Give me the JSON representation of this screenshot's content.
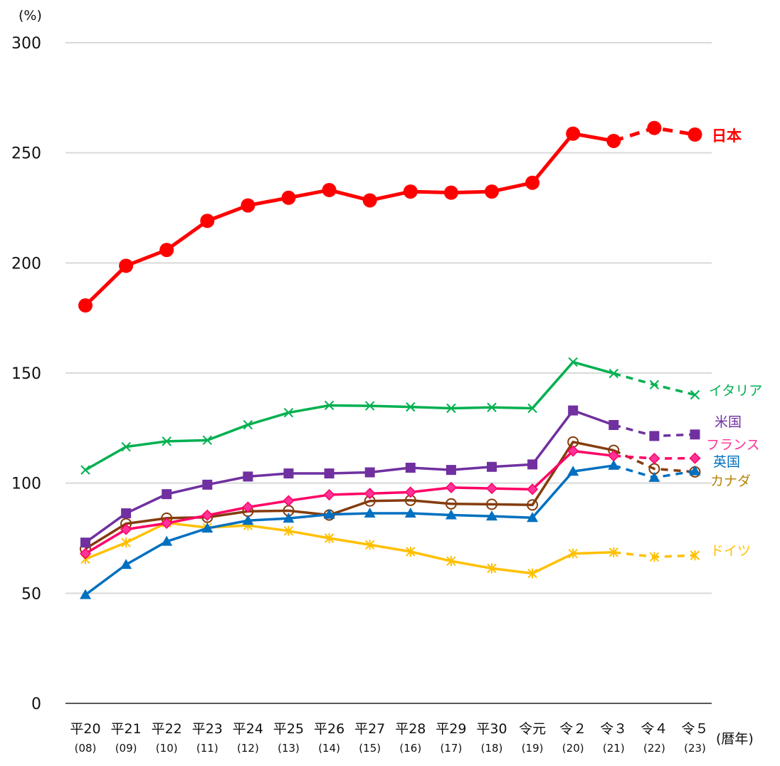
{
  "chart_data": {
    "type": "line",
    "title": "",
    "ylabel": "(%)",
    "xlabel": "(暦年)",
    "ylim": [
      0,
      300
    ],
    "yticks": [
      0,
      50,
      100,
      150,
      200,
      250,
      300
    ],
    "ytick_labels": [
      "0",
      "50",
      "100",
      "150",
      "200",
      "250",
      "300"
    ],
    "grid": true,
    "legend": "inline-right",
    "categories": [
      "平20",
      "平21",
      "平22",
      "平23",
      "平24",
      "平25",
      "平26",
      "平27",
      "平28",
      "平29",
      "平30",
      "令元",
      "令２",
      "令３",
      "令４",
      "令５"
    ],
    "categories_sub": [
      "(08)",
      "(09)",
      "(10)",
      "(11)",
      "(12)",
      "(13)",
      "(14)",
      "(15)",
      "(16)",
      "(17)",
      "(18)",
      "(19)",
      "(20)",
      "(21)",
      "(22)",
      "(23)"
    ],
    "dashed_from_index": 13,
    "series": [
      {
        "name": "日本",
        "color": "#ff0000",
        "marker": "circle",
        "emphasis": true,
        "values": [
          180.7,
          198.7,
          205.9,
          219.1,
          226.1,
          229.6,
          233.1,
          228.4,
          232.4,
          231.9,
          232.4,
          236.4,
          258.7,
          255.4,
          261.3,
          258.3
        ]
      },
      {
        "name": "イタリア",
        "color": "#00b050",
        "marker": "x",
        "values": [
          106.0,
          116.5,
          119.0,
          119.5,
          126.5,
          132.0,
          135.3,
          135.1,
          134.6,
          134.0,
          134.4,
          134.0,
          155.0,
          149.8,
          144.7,
          140.1
        ]
      },
      {
        "name": "米国",
        "color": "#7030a0",
        "marker": "square",
        "values": [
          73.0,
          86.3,
          95.0,
          99.3,
          103.0,
          104.4,
          104.4,
          104.9,
          107.0,
          106.0,
          107.4,
          108.5,
          133.0,
          126.4,
          121.4,
          122.1
        ]
      },
      {
        "name": "フランス",
        "color": "#ff0066",
        "marker": "diamond",
        "values": [
          68.0,
          79.0,
          81.8,
          85.4,
          89.1,
          92.0,
          94.7,
          95.3,
          95.9,
          98.0,
          97.6,
          97.2,
          114.6,
          112.4,
          111.2,
          111.3
        ]
      },
      {
        "name": "英国",
        "color": "#0070c0",
        "marker": "triangle",
        "values": [
          49.3,
          63.0,
          73.5,
          79.5,
          83.0,
          84.0,
          85.8,
          86.3,
          86.3,
          85.5,
          85.0,
          84.3,
          105.3,
          108.0,
          102.5,
          105.5
        ]
      },
      {
        "name": "カナダ",
        "color": "#843c0c",
        "marker": "open-circle",
        "values": [
          70.2,
          81.6,
          84.1,
          84.5,
          87.2,
          87.5,
          85.5,
          91.9,
          92.2,
          90.6,
          90.4,
          90.1,
          118.7,
          114.9,
          106.5,
          105.1
        ]
      },
      {
        "name": "ドイツ",
        "color": "#ffc000",
        "marker": "asterisk",
        "values": [
          65.5,
          73.0,
          82.0,
          79.8,
          80.8,
          78.3,
          75.0,
          72.0,
          68.9,
          64.6,
          61.3,
          59.0,
          68.0,
          68.6,
          66.5,
          67.2
        ]
      }
    ],
    "series_label_colors": {
      "日本": "#ff0000",
      "イタリア": "#00b050",
      "米国": "#7030a0",
      "フランス": "#ff3399",
      "英国": "#0070c0",
      "カナダ": "#b8860b",
      "ドイツ": "#ffc000"
    }
  }
}
